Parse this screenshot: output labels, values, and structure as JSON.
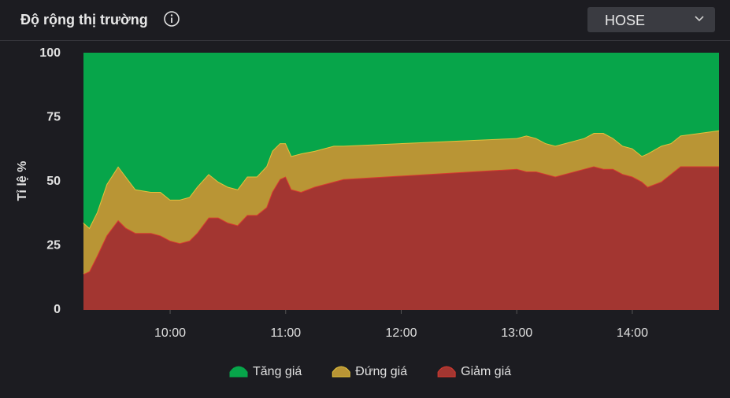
{
  "header": {
    "title": "Độ rộng thị trường",
    "exchange": "HOSE"
  },
  "chart_data": {
    "type": "stacked-area",
    "ylabel": "Tỉ lệ %",
    "x": [
      "09:15",
      "09:18",
      "09:22",
      "09:27",
      "09:33",
      "09:37",
      "09:42",
      "09:50",
      "09:55",
      "10:00",
      "10:05",
      "10:10",
      "10:14",
      "10:20",
      "10:25",
      "10:30",
      "10:35",
      "10:40",
      "10:45",
      "10:50",
      "10:53",
      "10:57",
      "11:00",
      "11:03",
      "11:08",
      "11:15",
      "11:20",
      "11:25",
      "11:30",
      "13:00",
      "13:05",
      "13:10",
      "13:15",
      "13:20",
      "13:25",
      "13:30",
      "13:35",
      "13:40",
      "13:45",
      "13:50",
      "13:55",
      "14:00",
      "14:05",
      "14:08",
      "14:15",
      "14:20",
      "14:25",
      "14:45"
    ],
    "series": [
      {
        "name": "Tăng giá",
        "color": "#07a54a",
        "line_color": "#07a54a",
        "values": [
          66,
          68,
          62,
          51,
          44,
          48,
          53,
          54,
          54,
          57,
          57,
          56,
          52,
          47,
          50,
          52,
          53,
          48,
          48,
          44,
          38,
          35,
          35,
          40,
          39,
          38,
          37,
          36,
          36,
          33,
          32,
          33,
          35,
          36,
          35,
          34,
          33,
          31,
          31,
          33,
          36,
          37,
          40,
          39,
          36,
          35,
          32,
          30
        ]
      },
      {
        "name": "Đứng giá",
        "color": "#b99535",
        "line_color": "#e3c23c",
        "values": [
          20,
          17,
          17,
          20,
          21,
          20,
          17,
          16,
          17,
          16,
          17,
          17,
          18,
          17,
          14,
          14,
          14,
          15,
          15,
          16,
          16,
          14,
          13,
          13,
          15,
          14,
          14,
          14,
          13,
          12,
          14,
          13,
          12,
          12,
          12,
          12,
          12,
          13,
          14,
          12,
          11,
          11,
          10,
          13,
          14,
          12,
          12,
          14
        ]
      },
      {
        "name": "Giảm giá",
        "color": "#a33631",
        "line_color": "#d8392f",
        "values": [
          14,
          15,
          21,
          29,
          35,
          32,
          30,
          30,
          29,
          27,
          26,
          27,
          30,
          36,
          36,
          34,
          33,
          37,
          37,
          40,
          46,
          51,
          52,
          47,
          46,
          48,
          49,
          50,
          51,
          55,
          54,
          54,
          53,
          52,
          53,
          54,
          55,
          56,
          55,
          55,
          53,
          52,
          50,
          48,
          50,
          53,
          56,
          56
        ]
      }
    ],
    "xlim": [
      "09:15",
      "14:45"
    ],
    "xticks": [
      "10:00",
      "11:00",
      "12:00",
      "13:00",
      "14:00"
    ],
    "ylim": [
      0,
      100
    ],
    "yticks": [
      0,
      25,
      50,
      75,
      100
    ],
    "grid": false,
    "legend": "bottom"
  }
}
